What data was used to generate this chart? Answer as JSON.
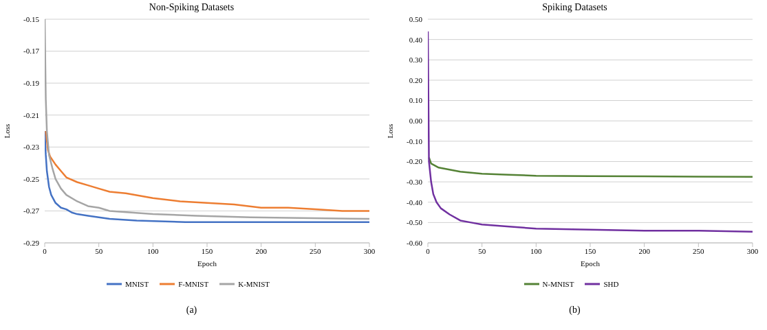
{
  "chart_data": [
    {
      "type": "line",
      "title": "Non-Spiking Datasets",
      "xlabel": "Epoch",
      "ylabel": "Loss",
      "xlim": [
        0,
        300
      ],
      "xticks": [
        0,
        50,
        100,
        150,
        200,
        250,
        300
      ],
      "ylim": [
        -0.29,
        -0.15
      ],
      "yticks": [
        -0.29,
        -0.27,
        -0.25,
        -0.23,
        -0.21,
        -0.19,
        -0.17,
        -0.15
      ],
      "grid": "y",
      "legend": "bottom",
      "marker": "none",
      "line_style": "solid",
      "annotations": [
        "(a)"
      ],
      "series": [
        {
          "name": "MNIST",
          "color": "#4472c4",
          "x": [
            0,
            1,
            2,
            4,
            6,
            10,
            15,
            20,
            25,
            30,
            40,
            50,
            60,
            85,
            130,
            300
          ],
          "values": [
            -0.22,
            -0.235,
            -0.245,
            -0.255,
            -0.26,
            -0.265,
            -0.268,
            -0.269,
            -0.271,
            -0.272,
            -0.273,
            -0.274,
            -0.275,
            -0.276,
            -0.277,
            -0.277
          ]
        },
        {
          "name": "F-MNIST",
          "color": "#ed7d31",
          "x": [
            1,
            3,
            5,
            10,
            15,
            20,
            30,
            40,
            50,
            60,
            75,
            100,
            125,
            150,
            175,
            200,
            225,
            250,
            275,
            300
          ],
          "values": [
            -0.22,
            -0.232,
            -0.236,
            -0.241,
            -0.245,
            -0.249,
            -0.252,
            -0.254,
            -0.256,
            -0.258,
            -0.259,
            -0.262,
            -0.264,
            -0.265,
            -0.266,
            -0.268,
            -0.268,
            -0.269,
            -0.27,
            -0.27
          ]
        },
        {
          "name": "K-MNIST",
          "color": "#a5a5a5",
          "x": [
            0,
            1,
            2,
            4,
            7,
            10,
            15,
            20,
            30,
            40,
            50,
            60,
            80,
            100,
            140,
            190,
            300
          ],
          "values": [
            -0.15,
            -0.2,
            -0.22,
            -0.235,
            -0.243,
            -0.25,
            -0.256,
            -0.26,
            -0.264,
            -0.267,
            -0.268,
            -0.27,
            -0.271,
            -0.272,
            -0.273,
            -0.274,
            -0.275
          ]
        }
      ]
    },
    {
      "type": "line",
      "title": "Spiking Datasets",
      "xlabel": "Epoch",
      "ylabel": "Loss",
      "xlim": [
        0,
        300
      ],
      "xticks": [
        0,
        50,
        100,
        150,
        200,
        250,
        300
      ],
      "ylim": [
        -0.6,
        0.5
      ],
      "yticks": [
        {
          "value": -0.6,
          "label": "-0.60"
        },
        {
          "value": -0.5,
          "label": "-0.50"
        },
        {
          "value": -0.4,
          "label": "-0.40"
        },
        {
          "value": -0.3,
          "label": "-0.30"
        },
        {
          "value": -0.2,
          "label": "-0.20"
        },
        {
          "value": -0.1,
          "label": "-0.10"
        },
        {
          "value": 0,
          "label": "0.00"
        },
        {
          "value": 0.1,
          "label": "0.10"
        },
        {
          "value": 0.2,
          "label": "0.20"
        },
        {
          "value": 0.3,
          "label": "0.30"
        },
        {
          "value": 0.4,
          "label": "0.40"
        },
        {
          "value": 0.5,
          "label": "0.50"
        }
      ],
      "grid": "y",
      "legend": "bottom",
      "marker": "none",
      "line_style": "solid",
      "annotations": [
        "(b)"
      ],
      "series": [
        {
          "name": "N-MNIST",
          "color": "#548235",
          "x": [
            1,
            3,
            10,
            20,
            30,
            50,
            75,
            100,
            150,
            200,
            250,
            300
          ],
          "values": [
            -0.18,
            -0.21,
            -0.23,
            -0.24,
            -0.25,
            -0.26,
            -0.265,
            -0.27,
            -0.272,
            -0.273,
            -0.274,
            -0.275
          ]
        },
        {
          "name": "SHD",
          "color": "#7030a0",
          "x": [
            0,
            1,
            3,
            5,
            8,
            12,
            20,
            30,
            40,
            50,
            75,
            100,
            150,
            200,
            250,
            300
          ],
          "values": [
            0.44,
            -0.2,
            -0.3,
            -0.36,
            -0.4,
            -0.43,
            -0.46,
            -0.49,
            -0.5,
            -0.51,
            -0.52,
            -0.53,
            -0.535,
            -0.54,
            -0.54,
            -0.545
          ]
        }
      ]
    }
  ]
}
